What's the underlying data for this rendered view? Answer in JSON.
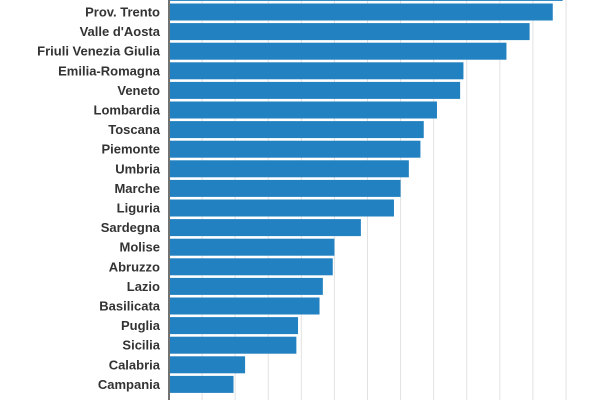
{
  "chart_data": {
    "type": "bar",
    "orientation": "horizontal",
    "title": "",
    "xlabel": "",
    "ylabel": "",
    "grid": true,
    "xlim": [
      0,
      12
    ],
    "bar_color": "#2281c0",
    "categories": [
      "",
      "Prov. Trento",
      "Valle d'Aosta",
      "Friuli Venezia Giulia",
      "Emilia-Romagna",
      "Veneto",
      "Lombardia",
      "Toscana",
      "Piemonte",
      "Umbria",
      "Marche",
      "Liguria",
      "Sardegna",
      "Molise",
      "Abruzzo",
      "Lazio",
      "Basilicata",
      "Puglia",
      "Sicilia",
      "Calabria",
      "Campania"
    ],
    "values": [
      11.9,
      11.6,
      10.9,
      10.2,
      8.9,
      8.8,
      8.1,
      7.7,
      7.6,
      7.25,
      7.0,
      6.8,
      5.8,
      5.0,
      4.95,
      4.65,
      4.55,
      3.9,
      3.85,
      2.3,
      1.95
    ]
  }
}
